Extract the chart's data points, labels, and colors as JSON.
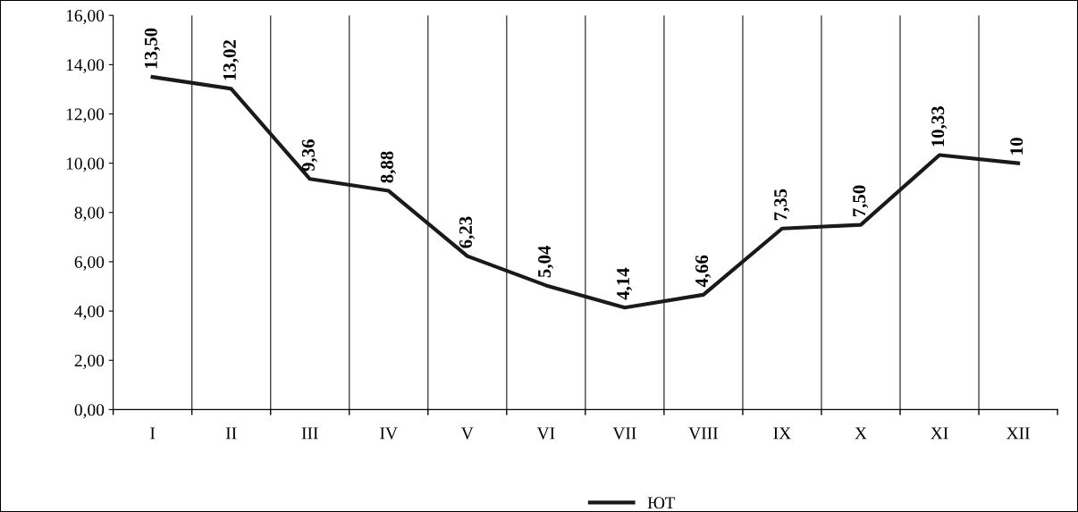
{
  "chart_data": {
    "type": "line",
    "categories": [
      "I",
      "II",
      "III",
      "IV",
      "V",
      "VI",
      "VII",
      "VIII",
      "IX",
      "X",
      "XI",
      "XII"
    ],
    "series": [
      {
        "name": "ЮТ",
        "color": "#1a1a1a",
        "values": [
          13.5,
          13.02,
          9.36,
          8.88,
          6.23,
          5.04,
          4.14,
          4.66,
          7.35,
          7.5,
          10.33,
          10
        ],
        "value_labels": [
          "13,50",
          "13,02",
          "9,36",
          "8,88",
          "6,23",
          "5,04",
          "4,14",
          "4,66",
          "7,35",
          "7,50",
          "10,33",
          "10"
        ]
      }
    ],
    "ylim": [
      0,
      16
    ],
    "yticks": [
      {
        "value": 0,
        "label": "0,00"
      },
      {
        "value": 2,
        "label": "2,00"
      },
      {
        "value": 4,
        "label": "4,00"
      },
      {
        "value": 6,
        "label": "6,00"
      },
      {
        "value": 8,
        "label": "8,00"
      },
      {
        "value": 10,
        "label": "10,00"
      },
      {
        "value": 12,
        "label": "12,00"
      },
      {
        "value": 14,
        "label": "14,00"
      },
      {
        "value": 16,
        "label": "16,00"
      }
    ],
    "grid": "x",
    "legend": "bottom",
    "marker": "none",
    "line_style": "solid"
  }
}
